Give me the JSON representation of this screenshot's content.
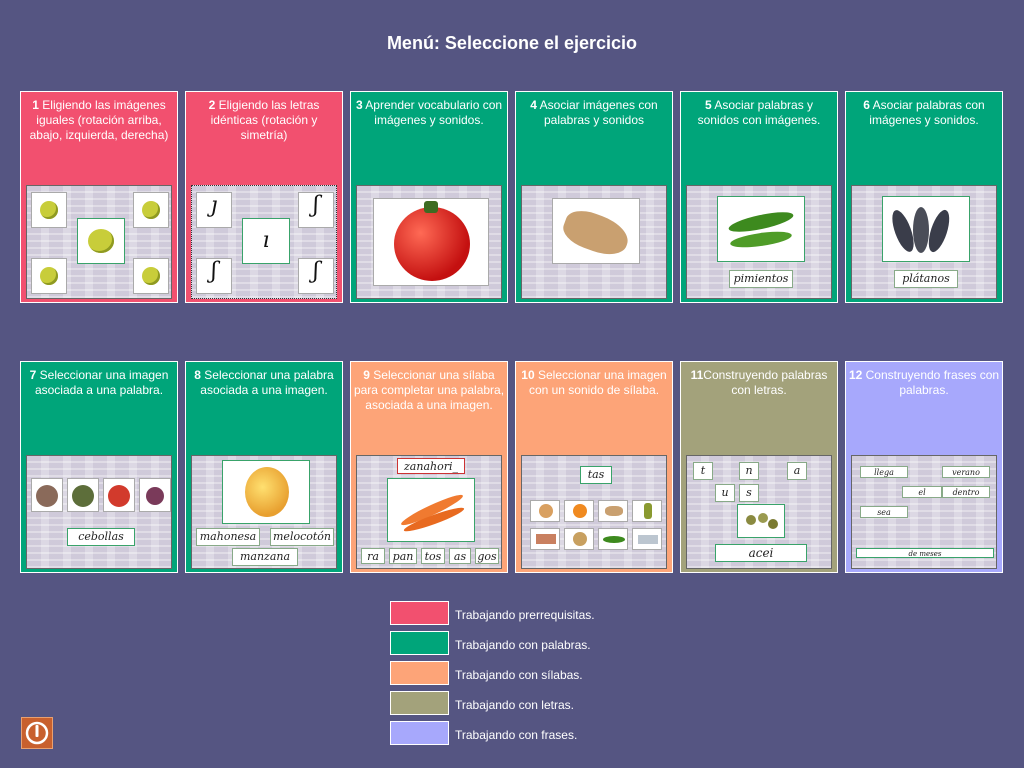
{
  "title": "Menú: Seleccione el ejercicio",
  "colors": {
    "prerrequisitas": "#f2506f",
    "palabras": "#00a57a",
    "silabas": "#fda478",
    "letras": "#a3a27b",
    "frases": "#a7a8fc",
    "background": "#555582"
  },
  "exercises": [
    {
      "num": "1",
      "text": "Eligiendo las imágenes iguales (rotación arriba, abajo, izquierda, derecha)"
    },
    {
      "num": "2",
      "text": "Eligiendo las letras idénticas (rotación y simetría)"
    },
    {
      "num": "3",
      "text": "Aprender vocabulario con imágenes y sonidos."
    },
    {
      "num": "4",
      "text": "Asociar imágenes con palabras y sonidos"
    },
    {
      "num": "5",
      "text": "Asociar palabras y sonidos con imágenes."
    },
    {
      "num": "6",
      "text": "Asociar palabras con imágenes y sonidos."
    },
    {
      "num": "7",
      "text": "Seleccionar una imagen asociada a una palabra."
    },
    {
      "num": "8",
      "text": "Seleccionar una palabra asociada a una imagen."
    },
    {
      "num": "9",
      "text": "Seleccionar una sílaba para completar una palabra, asociada a una imagen."
    },
    {
      "num": "10",
      "text": "Seleccionar una imagen con un sonido de sílaba."
    },
    {
      "num": "11",
      "text": "Construyendo palabras con letras."
    },
    {
      "num": "12",
      "text": "Construyendo frases con palabras."
    }
  ],
  "thumb_words": {
    "pimientos": "pimientos",
    "platanos": "plátanos",
    "cebollas": "cebollas",
    "mahonesa": "mahonesa",
    "melocoton": "melocotón",
    "manzana": "manzana",
    "zanahoria": "zanahori_",
    "syl": [
      "ra",
      "pan",
      "tos",
      "as",
      "gos"
    ],
    "tas": "tas",
    "letters": [
      "t",
      "n",
      "a",
      "u",
      "s"
    ],
    "acei": "acei",
    "phrase_words": [
      "llega",
      "verano",
      "el",
      "dentro",
      "sea"
    ],
    "phrase": "de meses"
  },
  "legend": [
    {
      "label": "Trabajando prerrequisitas.",
      "color": "#f2506f"
    },
    {
      "label": "Trabajando con palabras.",
      "color": "#00a57a"
    },
    {
      "label": "Trabajando con sílabas.",
      "color": "#fda478"
    },
    {
      "label": "Trabajando con letras.",
      "color": "#a3a27b"
    },
    {
      "label": "Trabajando con frases.",
      "color": "#a7a8fc"
    }
  ],
  "exit_icon": "power-icon"
}
